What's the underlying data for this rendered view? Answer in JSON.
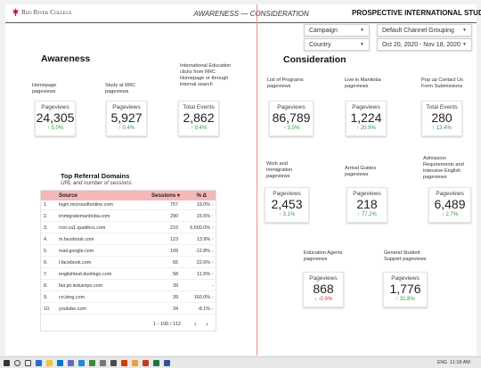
{
  "header": {
    "logo_text": "Red River College",
    "title": "AWARENESS — CONSIDERATION",
    "right_title": "PROSPECTIVE INTERNATIONAL STUDENTS"
  },
  "filters": {
    "campaign": "Campaign",
    "channel_grouping": "Default Channel Grouping",
    "country": "Country",
    "date_range": "Oct 20, 2020 - Nov 18, 2020"
  },
  "awareness": {
    "title": "Awareness",
    "kpis": [
      {
        "label": "Homepage pageviews",
        "metric": "Pageviews",
        "value": "24,305",
        "delta": "5.0%",
        "dir": "up"
      },
      {
        "label": "Study at RRC pageviews",
        "metric": "Pageviews",
        "value": "5,927",
        "delta": "0.4%",
        "dir": "up"
      },
      {
        "label": "International Education clicks from RRC Homepage or through internal search",
        "metric": "Total Events",
        "value": "2,862",
        "delta": "9.4%",
        "dir": "up"
      }
    ]
  },
  "consideration": {
    "title": "Consideration",
    "kpis": [
      {
        "label": "List of Programs pageviews",
        "metric": "Pageviews",
        "value": "86,789",
        "delta": "3.5%",
        "dir": "up"
      },
      {
        "label": "Live in Manitoba pageviews",
        "metric": "Pageviews",
        "value": "1,224",
        "delta": "20.9%",
        "dir": "up"
      },
      {
        "label": "Pop up Contact Us Form Submissions",
        "metric": "Total Events",
        "value": "280",
        "delta": "13.4%",
        "dir": "up"
      },
      {
        "label": "Work and Immigration pageviews",
        "metric": "Pageviews",
        "value": "2,453",
        "delta": "3.1%",
        "dir": "up"
      },
      {
        "label": "Arrival Guides pageviews",
        "metric": "Pageviews",
        "value": "218",
        "delta": "77.2%",
        "dir": "up"
      },
      {
        "label": "Admission Requirements and Intensive English pageviews",
        "metric": "Pageviews",
        "value": "6,489",
        "delta": "2.7%",
        "dir": "up"
      },
      {
        "label": "Education Agents pageviews",
        "metric": "Pageviews",
        "value": "868",
        "delta": "-0.9%",
        "dir": "down"
      },
      {
        "label": "General Student Support pageviews",
        "metric": "Pageviews",
        "value": "1,776",
        "delta": "31.8%",
        "dir": "up"
      }
    ]
  },
  "referrals": {
    "title": "Top Referral Domains",
    "subtitle": "URL and number of sessions",
    "columns": {
      "source": "Source",
      "sessions": "Sessions ▾",
      "pct": "% Δ"
    },
    "rows": [
      {
        "idx": "1.",
        "source": "login.microsoftonline.com",
        "sessions": "757",
        "pct": "19.0%",
        "dir": "up"
      },
      {
        "idx": "2.",
        "source": "immigratemanitoba.com",
        "sessions": "290",
        "pct": "15.5%",
        "dir": "up"
      },
      {
        "idx": "3.",
        "source": "rrcir.ca1.qualtrics.com",
        "sessions": "210",
        "pct": "6,500.0%",
        "dir": "up"
      },
      {
        "idx": "4.",
        "source": "m.facebook.com",
        "sessions": "123",
        "pct": "13.9%",
        "dir": "up"
      },
      {
        "idx": "5.",
        "source": "mail.google.com",
        "sessions": "109",
        "pct": "-12.8%",
        "dir": "down"
      },
      {
        "idx": "6.",
        "source": "l.facebook.com",
        "sessions": "65",
        "pct": "22.6%",
        "dir": "up"
      },
      {
        "idx": "7.",
        "source": "englishtest.duolingo.com",
        "sessions": "58",
        "pct": "11.5%",
        "dir": "up"
      },
      {
        "idx": "8.",
        "source": "fair.jei.ieduexpo.com",
        "sessions": "39",
        "pct": "-",
        "dir": ""
      },
      {
        "idx": "9.",
        "source": "cn.bing.com",
        "sessions": "39",
        "pct": "160.0%",
        "dir": "up"
      },
      {
        "idx": "10.",
        "source": "youtube.com",
        "sessions": "34",
        "pct": "-8.1%",
        "dir": "down"
      }
    ],
    "pagination": "1 - 100 / 112"
  },
  "taskbar": {
    "lang": "ENG",
    "time": "11:18 AM"
  },
  "colors": {
    "accent": "#c8102e",
    "positive": "#2e9e3e",
    "negative": "#dd3333",
    "table_header": "#f4b8b8"
  }
}
